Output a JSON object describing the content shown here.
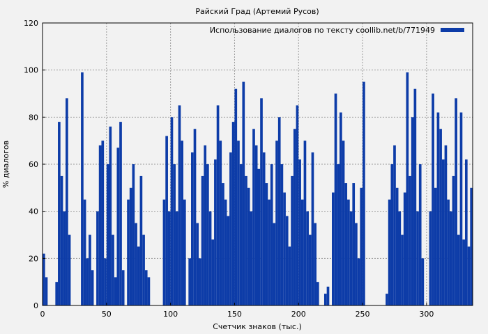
{
  "chart_data": {
    "type": "bar",
    "title": "Райский Град (Артемий Русов)",
    "xlabel": "Счетчик знаков (тыс.)",
    "ylabel": "% диалогов",
    "xlim": [
      0,
      336
    ],
    "ylim": [
      0,
      120
    ],
    "xticks": [
      0,
      50,
      100,
      150,
      200,
      250,
      300
    ],
    "yticks": [
      0,
      20,
      40,
      60,
      80,
      100,
      120
    ],
    "grid": true,
    "legend_position": "top-right",
    "bar_color": "#0d3ca8",
    "series": [
      {
        "name": "Использование диалогов по тексту coollib.net/b/771949",
        "x": [
          0,
          2,
          4,
          6,
          8,
          10,
          12,
          14,
          16,
          18,
          20,
          22,
          24,
          26,
          28,
          30,
          32,
          34,
          36,
          38,
          40,
          42,
          44,
          46,
          48,
          50,
          52,
          54,
          56,
          58,
          60,
          62,
          64,
          66,
          68,
          70,
          72,
          74,
          76,
          78,
          80,
          82,
          84,
          86,
          88,
          90,
          92,
          94,
          96,
          98,
          100,
          102,
          104,
          106,
          108,
          110,
          112,
          114,
          116,
          118,
          120,
          122,
          124,
          126,
          128,
          130,
          132,
          134,
          136,
          138,
          140,
          142,
          144,
          146,
          148,
          150,
          152,
          154,
          156,
          158,
          160,
          162,
          164,
          166,
          168,
          170,
          172,
          174,
          176,
          178,
          180,
          182,
          184,
          186,
          188,
          190,
          192,
          194,
          196,
          198,
          200,
          202,
          204,
          206,
          208,
          210,
          212,
          214,
          216,
          218,
          220,
          222,
          224,
          226,
          228,
          230,
          232,
          234,
          236,
          238,
          240,
          242,
          244,
          246,
          248,
          250,
          252,
          254,
          256,
          258,
          260,
          262,
          264,
          266,
          268,
          270,
          272,
          274,
          276,
          278,
          280,
          282,
          284,
          286,
          288,
          290,
          292,
          294,
          296,
          298,
          300,
          302,
          304,
          306,
          308,
          310,
          312,
          314,
          316,
          318,
          320,
          322,
          324,
          326,
          328,
          330,
          332,
          334
        ],
        "values": [
          22,
          12,
          0,
          0,
          0,
          10,
          78,
          55,
          40,
          88,
          30,
          0,
          0,
          0,
          0,
          99,
          45,
          20,
          30,
          15,
          0,
          40,
          68,
          70,
          20,
          60,
          76,
          30,
          12,
          67,
          78,
          15,
          0,
          45,
          50,
          60,
          35,
          25,
          55,
          30,
          15,
          12,
          0,
          0,
          0,
          0,
          0,
          45,
          72,
          40,
          80,
          60,
          40,
          85,
          70,
          45,
          0,
          20,
          65,
          75,
          35,
          20,
          55,
          68,
          60,
          40,
          28,
          62,
          85,
          70,
          52,
          45,
          38,
          65,
          78,
          92,
          70,
          60,
          95,
          55,
          50,
          40,
          75,
          68,
          58,
          88,
          65,
          52,
          45,
          60,
          35,
          70,
          80,
          60,
          48,
          38,
          25,
          55,
          75,
          85,
          62,
          45,
          70,
          40,
          30,
          65,
          35,
          10,
          0,
          0,
          5,
          8,
          0,
          48,
          90,
          60,
          82,
          70,
          52,
          45,
          40,
          52,
          35,
          20,
          50,
          95,
          0,
          0,
          0,
          0,
          0,
          0,
          0,
          0,
          5,
          45,
          60,
          68,
          50,
          40,
          30,
          48,
          99,
          55,
          80,
          92,
          40,
          60,
          20,
          0,
          0,
          40,
          90,
          50,
          82,
          75,
          62,
          68,
          45,
          40,
          55,
          88,
          30,
          82,
          28,
          62,
          25,
          50
        ]
      }
    ]
  }
}
